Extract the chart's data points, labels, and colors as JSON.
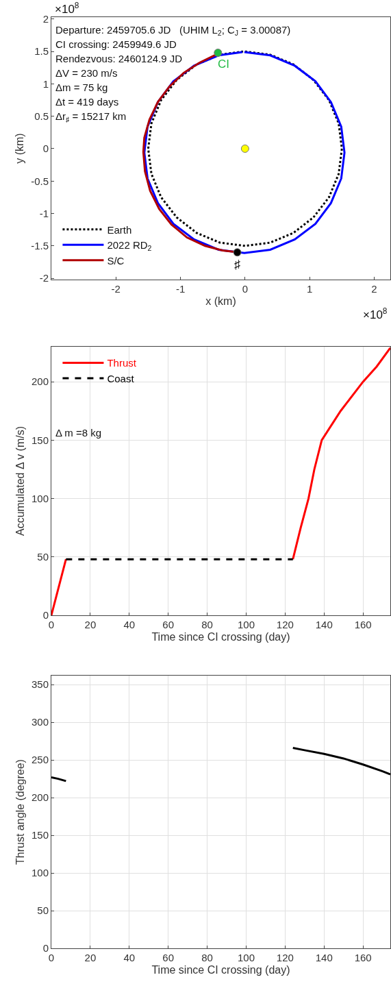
{
  "chart_data": [
    {
      "type": "line",
      "xlabel": "x (km)",
      "ylabel": "y (km)",
      "xlim": [
        -3,
        2.25
      ],
      "ylim": [
        -2.02,
        2.03
      ],
      "xticks": [
        -2,
        -1,
        0,
        1,
        2
      ],
      "yticks": [
        -2,
        -1.5,
        -1,
        -0.5,
        0,
        0.5,
        1,
        1.5,
        2
      ],
      "grid": false,
      "legend": "bottom left",
      "series": [
        {
          "name": "Earth",
          "color": "#000000",
          "line_style": "dotted",
          "x": [
            0,
            0.39,
            0.75,
            1.06,
            1.3,
            1.45,
            1.5,
            1.45,
            1.3,
            1.06,
            0.75,
            0.39,
            0,
            -0.39,
            -0.75,
            -1.06,
            -1.3,
            -1.45,
            -1.5,
            -1.45,
            -1.3,
            -1.06,
            -0.75,
            -0.39,
            -0.03
          ],
          "values": [
            1.5,
            1.45,
            1.3,
            1.06,
            0.75,
            0.39,
            0,
            -0.39,
            -0.75,
            -1.06,
            -1.3,
            -1.45,
            -1.5,
            -1.45,
            -1.3,
            -1.06,
            -0.75,
            -0.39,
            0,
            0.39,
            0.75,
            1.06,
            1.3,
            1.45,
            1.5
          ]
        },
        {
          "name": "2022 RD$_{2}$",
          "color": "#0000ff",
          "line_style": "solid",
          "x": [
            -0.01,
            0.39,
            0.77,
            1.09,
            1.33,
            1.49,
            1.54,
            1.49,
            1.33,
            1.09,
            0.77,
            0.39,
            -0.01,
            -0.41,
            -0.79,
            -1.11,
            -1.35,
            -1.51,
            -1.56,
            -1.51,
            -1.35,
            -1.11,
            -0.79,
            -0.41,
            -0.04
          ],
          "values": [
            1.49,
            1.44,
            1.28,
            1.04,
            0.72,
            0.34,
            -0.06,
            -0.46,
            -0.84,
            -1.16,
            -1.4,
            -1.56,
            -1.61,
            -1.56,
            -1.4,
            -1.16,
            -0.84,
            -0.46,
            -0.06,
            0.34,
            0.72,
            1.04,
            1.28,
            1.44,
            1.49
          ]
        },
        {
          "name": "S/C",
          "color": "#b00000",
          "line_style": "solid",
          "x": [
            -0.43,
            -0.7,
            -0.95,
            -1.17,
            -1.35,
            -1.48,
            -1.56,
            -1.575,
            -1.55,
            -1.47,
            -1.33,
            -1.14,
            -0.9,
            -0.62,
            -0.35,
            -0.1
          ],
          "values": [
            1.46,
            1.33,
            1.17,
            0.96,
            0.72,
            0.45,
            0.17,
            -0.05,
            -0.35,
            -0.65,
            -0.93,
            -1.17,
            -1.37,
            -1.5,
            -1.57,
            -1.6
          ]
        },
        {
          "type": "scatter",
          "marker": "circle",
          "color": "#ffff00",
          "x": [
            0
          ],
          "values": [
            0
          ]
        },
        {
          "type": "scatter",
          "marker": "circle",
          "color": "#22bb44",
          "x": [
            -0.42
          ],
          "values": [
            1.48
          ]
        },
        {
          "type": "scatter",
          "marker": "circle",
          "color": "#000000",
          "x": [
            -0.12
          ],
          "values": [
            -1.6
          ]
        }
      ],
      "annotations": [
        "Departure: 2459705.6 JD   (UHIM L$_{2}$; C$_{J}$ = 3.00087)",
        "CI crossing: 2459949.6 JD",
        "Rendezvous: 2460124.9 JD",
        "ΔV = 230 m/s",
        "Δm = 75 kg",
        "Δt = 419 days",
        "Δr$_{♯}$ = 15217 km",
        "CI",
        "♯",
        "×10$^{8}$",
        "×10$^{8}$"
      ]
    },
    {
      "type": "line",
      "xlabel": "Time since CI crossing (day)",
      "ylabel": "Accumulated Δ v (m/s)",
      "xlim": [
        0,
        174
      ],
      "ylim": [
        0,
        230
      ],
      "xticks": [
        0,
        20,
        40,
        60,
        80,
        100,
        120,
        140,
        160
      ],
      "yticks": [
        0,
        50,
        100,
        150,
        200
      ],
      "grid": true,
      "legend": "top left",
      "series": [
        {
          "name": "Thrust",
          "color": "#ff0000",
          "line_style": "solid",
          "x": [
            0,
            7.5,
            60,
            124,
            128,
            132,
            135,
            138.8,
            148.5,
            160,
            167,
            174
          ],
          "values": [
            0,
            48,
            null,
            48,
            75,
            100,
            125,
            150,
            175,
            200,
            213,
            229
          ]
        },
        {
          "name": "Coast",
          "color": "#000000",
          "line_style": "dashed",
          "x": [
            7.5,
            124
          ],
          "values": [
            48,
            48
          ]
        }
      ],
      "annotations": [
        "Δ m =8 kg"
      ]
    },
    {
      "type": "line",
      "xlabel": "Time since CI crossing (day)",
      "ylabel": "Thrust angle (degree)",
      "xlim": [
        0,
        174
      ],
      "ylim": [
        0,
        362
      ],
      "xticks": [
        0,
        20,
        40,
        60,
        80,
        100,
        120,
        140,
        160
      ],
      "yticks": [
        0,
        50,
        100,
        150,
        200,
        250,
        300,
        350
      ],
      "grid": true,
      "series": [
        {
          "color": "#000000",
          "line_style": "solid",
          "x": [
            0,
            3.5,
            7.5,
            60,
            124,
            130,
            140,
            150,
            160,
            170,
            174
          ],
          "values": [
            227,
            225,
            222,
            null,
            266,
            263,
            258,
            252,
            244,
            235,
            231
          ]
        }
      ]
    }
  ]
}
